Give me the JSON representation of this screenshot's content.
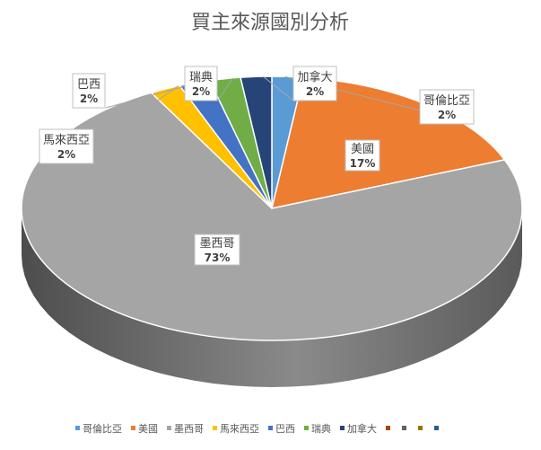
{
  "chart_data": {
    "type": "pie",
    "title": "買主來源國別分析",
    "categories": [
      "哥倫比亞",
      "美國",
      "墨西哥",
      "馬來西亞",
      "巴西",
      "瑞典",
      "加拿大"
    ],
    "values": [
      2,
      17,
      73,
      2,
      2,
      2,
      2
    ],
    "labels": [
      "2%",
      "17%",
      "73%",
      "2%",
      "2%",
      "2%",
      "2%"
    ],
    "colors": [
      "#5B9BD5",
      "#ED7D31",
      "#A5A5A5",
      "#FFC000",
      "#4472C4",
      "#70AD47",
      "#264478"
    ],
    "extra_legend_colors": [
      "#9E480E",
      "#636363",
      "#997300"
    ],
    "extra_legend_dark": "#255E91",
    "legend_position": "bottom",
    "style": "3d-exploded"
  }
}
